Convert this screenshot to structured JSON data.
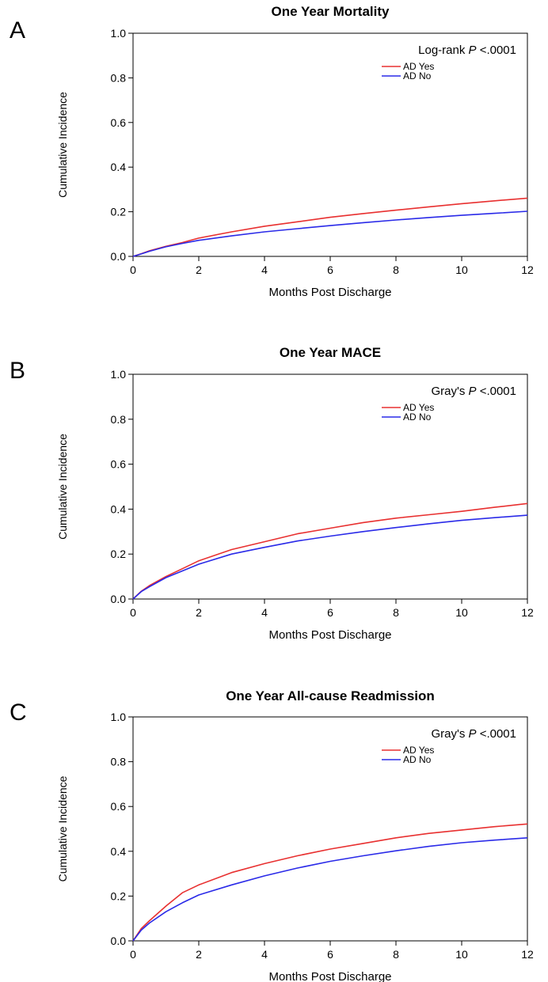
{
  "chart_data": [
    {
      "panel": "A",
      "type": "line",
      "title": "One Year Mortality",
      "xlabel": "Months Post Discharge",
      "ylabel": "Cumulative Incidence",
      "xlim": [
        0,
        12
      ],
      "ylim": [
        0,
        1.0
      ],
      "xticks": [
        "0",
        "2",
        "4",
        "6",
        "8",
        "10",
        "12"
      ],
      "yticks": [
        "0.0",
        "0.2",
        "0.4",
        "0.6",
        "0.8",
        "1.0"
      ],
      "grid": false,
      "legend_position": "top-right",
      "stat_label": "Log-rank",
      "stat_p": "P",
      "stat_value": "<.0001",
      "series": [
        {
          "name": "AD Yes",
          "color": "#e83030",
          "x": [
            0,
            0.25,
            0.5,
            1,
            1.5,
            2,
            3,
            4,
            5,
            6,
            7,
            8,
            9,
            10,
            11,
            12
          ],
          "y": [
            0,
            0.012,
            0.025,
            0.045,
            0.062,
            0.082,
            0.11,
            0.135,
            0.155,
            0.175,
            0.192,
            0.207,
            0.222,
            0.236,
            0.249,
            0.261
          ]
        },
        {
          "name": "AD No",
          "color": "#2a2ae8",
          "x": [
            0,
            0.25,
            0.5,
            1,
            1.5,
            2,
            3,
            4,
            5,
            6,
            7,
            8,
            9,
            10,
            11,
            12
          ],
          "y": [
            0,
            0.011,
            0.023,
            0.043,
            0.058,
            0.072,
            0.092,
            0.11,
            0.124,
            0.138,
            0.151,
            0.163,
            0.174,
            0.184,
            0.193,
            0.202
          ]
        }
      ]
    },
    {
      "panel": "B",
      "type": "line",
      "title": "One Year MACE",
      "xlabel": "Months Post Discharge",
      "ylabel": "Cumulative Incidence",
      "xlim": [
        0,
        12
      ],
      "ylim": [
        0,
        1.0
      ],
      "xticks": [
        "0",
        "2",
        "4",
        "6",
        "8",
        "10",
        "12"
      ],
      "yticks": [
        "0.0",
        "0.2",
        "0.4",
        "0.6",
        "0.8",
        "1.0"
      ],
      "grid": false,
      "legend_position": "top-right",
      "stat_label": "Gray's",
      "stat_p": "P",
      "stat_value": "<.0001",
      "series": [
        {
          "name": "AD Yes",
          "color": "#e83030",
          "x": [
            0,
            0.25,
            0.5,
            1,
            1.5,
            2,
            3,
            4,
            5,
            6,
            7,
            8,
            9,
            10,
            11,
            12
          ],
          "y": [
            0,
            0.035,
            0.06,
            0.1,
            0.135,
            0.17,
            0.22,
            0.255,
            0.29,
            0.315,
            0.34,
            0.36,
            0.375,
            0.39,
            0.408,
            0.425
          ]
        },
        {
          "name": "AD No",
          "color": "#2a2ae8",
          "x": [
            0,
            0.25,
            0.5,
            1,
            1.5,
            2,
            3,
            4,
            5,
            6,
            7,
            8,
            9,
            10,
            11,
            12
          ],
          "y": [
            0,
            0.033,
            0.055,
            0.095,
            0.125,
            0.155,
            0.2,
            0.23,
            0.258,
            0.28,
            0.3,
            0.318,
            0.335,
            0.35,
            0.362,
            0.373
          ]
        }
      ]
    },
    {
      "panel": "C",
      "type": "line",
      "title": "One Year All-cause Readmission",
      "xlabel": "Months Post Discharge",
      "ylabel": "Cumulative Incidence",
      "xlim": [
        0,
        12
      ],
      "ylim": [
        0,
        1.0
      ],
      "xticks": [
        "0",
        "2",
        "4",
        "6",
        "8",
        "10",
        "12"
      ],
      "yticks": [
        "0.0",
        "0.2",
        "0.4",
        "0.6",
        "0.8",
        "1.0"
      ],
      "grid": false,
      "legend_position": "top-right",
      "stat_label": "Gray's",
      "stat_p": "P",
      "stat_value": "<.0001",
      "series": [
        {
          "name": "AD Yes",
          "color": "#e83030",
          "x": [
            0,
            0.25,
            0.5,
            1,
            1.5,
            2,
            3,
            4,
            5,
            6,
            7,
            8,
            9,
            10,
            11,
            12
          ],
          "y": [
            0,
            0.055,
            0.09,
            0.155,
            0.215,
            0.25,
            0.305,
            0.345,
            0.38,
            0.41,
            0.435,
            0.46,
            0.48,
            0.495,
            0.51,
            0.522
          ]
        },
        {
          "name": "AD No",
          "color": "#2a2ae8",
          "x": [
            0,
            0.25,
            0.5,
            1,
            1.5,
            2,
            3,
            4,
            5,
            6,
            7,
            8,
            9,
            10,
            11,
            12
          ],
          "y": [
            0,
            0.048,
            0.08,
            0.13,
            0.17,
            0.205,
            0.25,
            0.29,
            0.325,
            0.355,
            0.38,
            0.402,
            0.422,
            0.438,
            0.45,
            0.46
          ]
        }
      ]
    }
  ]
}
